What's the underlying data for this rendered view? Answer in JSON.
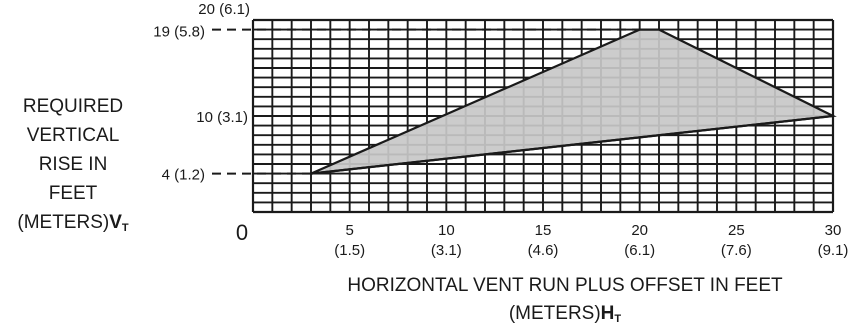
{
  "chart_data": {
    "type": "area",
    "xlabel": "HORIZONTAL VENT RUN PLUS OFFSET IN FEET (METERS)",
    "xlabel_var": "H",
    "xlabel_sub": "T",
    "ylabel": "REQUIRED VERTICAL RISE IN FEET (METERS)",
    "ylabel_lines": [
      "REQUIRED",
      "VERTICAL",
      "RISE IN",
      "FEET"
    ],
    "ylabel_last": "(METERS)",
    "ylabel_var": "V",
    "ylabel_sub": "T",
    "xlim": [
      0,
      30
    ],
    "ylim": [
      0,
      20
    ],
    "origin_label": "0",
    "grid": true,
    "fill_color": "#c8c8c8",
    "x_ticks": [
      {
        "x": 5,
        "label": "5",
        "sub": "(1.5)"
      },
      {
        "x": 10,
        "label": "10",
        "sub": "(3.1)"
      },
      {
        "x": 15,
        "label": "15",
        "sub": "(4.6)"
      },
      {
        "x": 20,
        "label": "20",
        "sub": "(6.1)"
      },
      {
        "x": 25,
        "label": "25",
        "sub": "(7.6)"
      },
      {
        "x": 30,
        "label": "30",
        "sub": "(9.1)"
      }
    ],
    "y_ticks": [
      {
        "y": 20,
        "label": "20 (6.1)"
      },
      {
        "y": 19,
        "label": "19 (5.8)"
      },
      {
        "y": 10,
        "label": "10 (3.1)"
      },
      {
        "y": 4,
        "label": "4 (1.2)"
      }
    ],
    "region": {
      "polygon": [
        [
          3,
          4
        ],
        [
          20,
          19
        ],
        [
          21,
          19
        ],
        [
          30,
          10
        ]
      ],
      "lower_edge": [
        [
          3,
          4
        ],
        [
          30,
          10
        ]
      ]
    }
  }
}
